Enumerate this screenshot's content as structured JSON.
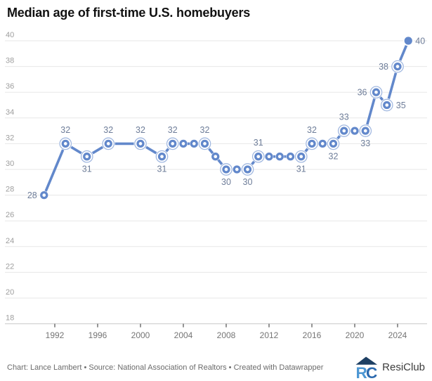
{
  "title": "Median age of first-time U.S. homebuyers",
  "footer": {
    "credit": "Chart: Lance Lambert • Source: National Association of Realtors • Created with Datawrapper",
    "brand": "ResiClub"
  },
  "colors": {
    "line": "#6288cb",
    "ring_stroke": "#6288cb",
    "value_label": "#6e7d99",
    "grid": "#e7e7e7",
    "baseline": "#c9c9c9",
    "tick": "#4d4d4d",
    "y_label": "#9e9e9e",
    "x_label": "#757575",
    "logo_roof": "#1d3f63",
    "logo_r": "#4d97d3",
    "logo_c": "#2b69ae"
  },
  "chart_data": {
    "type": "line",
    "title": "Median age of first-time U.S. homebuyers",
    "xlabel": "",
    "ylabel": "",
    "ylim": [
      18,
      40
    ],
    "y_ticks": [
      18,
      20,
      22,
      24,
      26,
      28,
      30,
      32,
      34,
      36,
      38,
      40
    ],
    "x_ticks": [
      1992,
      1996,
      2000,
      2004,
      2008,
      2012,
      2016,
      2020,
      2024
    ],
    "grid": "horizontal",
    "legend": "none",
    "points": [
      {
        "year": 1991,
        "value": 28,
        "label_pos": "left",
        "style": "donut"
      },
      {
        "year": 1993,
        "value": 32,
        "label_pos": "above",
        "style": "ring"
      },
      {
        "year": 1995,
        "value": 31,
        "label_pos": "below",
        "style": "ring"
      },
      {
        "year": 1997,
        "value": 32,
        "label_pos": "above",
        "style": "ring"
      },
      {
        "year": 2000,
        "value": 32,
        "label_pos": "above",
        "style": "ring"
      },
      {
        "year": 2002,
        "value": 31,
        "label_pos": "below",
        "style": "ring"
      },
      {
        "year": 2003,
        "value": 32,
        "label_pos": "above",
        "style": "ring"
      },
      {
        "year": 2004,
        "value": 32,
        "label_pos": "none",
        "style": "donut"
      },
      {
        "year": 2005,
        "value": 32,
        "label_pos": "none",
        "style": "donut"
      },
      {
        "year": 2006,
        "value": 32,
        "label_pos": "above",
        "style": "ring"
      },
      {
        "year": 2007,
        "value": 31,
        "label_pos": "none",
        "style": "donut"
      },
      {
        "year": 2008,
        "value": 30,
        "label_pos": "below",
        "style": "ring"
      },
      {
        "year": 2009,
        "value": 30,
        "label_pos": "none",
        "style": "donut"
      },
      {
        "year": 2010,
        "value": 30,
        "label_pos": "below",
        "style": "ring"
      },
      {
        "year": 2011,
        "value": 31,
        "label_pos": "above",
        "style": "ring"
      },
      {
        "year": 2012,
        "value": 31,
        "label_pos": "none",
        "style": "donut"
      },
      {
        "year": 2013,
        "value": 31,
        "label_pos": "none",
        "style": "donut"
      },
      {
        "year": 2014,
        "value": 31,
        "label_pos": "none",
        "style": "donut"
      },
      {
        "year": 2015,
        "value": 31,
        "label_pos": "below",
        "style": "ring"
      },
      {
        "year": 2016,
        "value": 32,
        "label_pos": "above",
        "style": "ring"
      },
      {
        "year": 2017,
        "value": 32,
        "label_pos": "none",
        "style": "donut"
      },
      {
        "year": 2018,
        "value": 32,
        "label_pos": "below",
        "style": "ring"
      },
      {
        "year": 2019,
        "value": 33,
        "label_pos": "above",
        "style": "ring"
      },
      {
        "year": 2020,
        "value": 33,
        "label_pos": "none",
        "style": "donut"
      },
      {
        "year": 2021,
        "value": 33,
        "label_pos": "below",
        "style": "ring"
      },
      {
        "year": 2022,
        "value": 36,
        "label_pos": "left",
        "style": "ring"
      },
      {
        "year": 2023,
        "value": 35,
        "label_pos": "right",
        "style": "ring"
      },
      {
        "year": 2024,
        "value": 38,
        "label_pos": "left",
        "style": "ring"
      },
      {
        "year": 2025,
        "value": 40,
        "label_pos": "right",
        "style": "solid"
      }
    ]
  }
}
